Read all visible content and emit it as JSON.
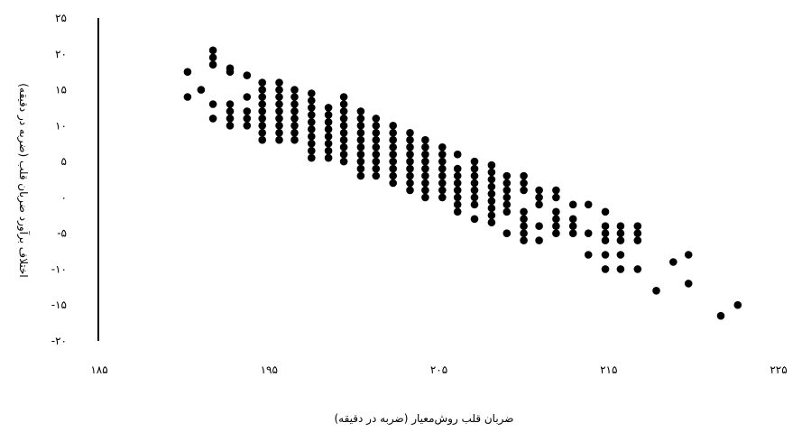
{
  "chart_data": {
    "type": "scatter",
    "xlabel": "ضربان قلب روش‌معیار (ضربه در دقیقه)",
    "ylabel": "اختلاف برآورد ضربان قلب (ضربه در دقیقه)",
    "xlim": [
      185,
      225
    ],
    "ylim": [
      -20,
      25
    ],
    "x_ticks": [
      185,
      195,
      205,
      215,
      225
    ],
    "x_tick_labels": [
      "۱۸۵",
      "۱۹۵",
      "۲۰۵",
      "۲۱۵",
      "۲۲۵"
    ],
    "y_ticks": [
      25,
      20,
      15,
      10,
      5,
      0,
      -5,
      -10,
      -15,
      -20
    ],
    "y_tick_labels": [
      "۲۵",
      "۲۰",
      "۱۵",
      "۱۰",
      "۵",
      "۰",
      "-۵",
      "-۱۰",
      "-۱۵",
      "-۲۰"
    ],
    "grid": false,
    "color": "#000000",
    "points": [
      [
        190.2,
        17.5
      ],
      [
        190.2,
        14.0
      ],
      [
        191.0,
        15.0
      ],
      [
        191.7,
        20.5
      ],
      [
        191.7,
        19.5
      ],
      [
        191.7,
        18.5
      ],
      [
        191.7,
        13.0
      ],
      [
        191.7,
        11.0
      ],
      [
        192.7,
        18.0
      ],
      [
        192.7,
        17.5
      ],
      [
        192.7,
        13.0
      ],
      [
        192.7,
        12.0
      ],
      [
        192.7,
        11.0
      ],
      [
        192.7,
        10.0
      ],
      [
        193.7,
        17.0
      ],
      [
        193.7,
        14.0
      ],
      [
        193.7,
        12.0
      ],
      [
        193.7,
        11.0
      ],
      [
        193.7,
        10.0
      ],
      [
        194.6,
        16.0
      ],
      [
        194.6,
        15.0
      ],
      [
        194.6,
        14.0
      ],
      [
        194.6,
        13.0
      ],
      [
        194.6,
        12.0
      ],
      [
        194.6,
        11.0
      ],
      [
        194.6,
        10.0
      ],
      [
        194.6,
        9.0
      ],
      [
        194.6,
        8.0
      ],
      [
        195.6,
        16.0
      ],
      [
        195.6,
        15.0
      ],
      [
        195.6,
        14.0
      ],
      [
        195.6,
        13.0
      ],
      [
        195.6,
        12.0
      ],
      [
        195.6,
        11.0
      ],
      [
        195.6,
        10.0
      ],
      [
        195.6,
        9.0
      ],
      [
        195.6,
        8.0
      ],
      [
        196.5,
        15.0
      ],
      [
        196.5,
        14.0
      ],
      [
        196.5,
        13.0
      ],
      [
        196.5,
        12.0
      ],
      [
        196.5,
        11.0
      ],
      [
        196.5,
        10.0
      ],
      [
        196.5,
        9.0
      ],
      [
        196.5,
        8.0
      ],
      [
        197.5,
        14.5
      ],
      [
        197.5,
        13.5
      ],
      [
        197.5,
        12.5
      ],
      [
        197.5,
        11.5
      ],
      [
        197.5,
        10.5
      ],
      [
        197.5,
        9.5
      ],
      [
        197.5,
        8.5
      ],
      [
        197.5,
        7.5
      ],
      [
        197.5,
        6.5
      ],
      [
        197.5,
        5.5
      ],
      [
        198.5,
        12.5
      ],
      [
        198.5,
        11.5
      ],
      [
        198.5,
        10.5
      ],
      [
        198.5,
        9.5
      ],
      [
        198.5,
        8.5
      ],
      [
        198.5,
        7.5
      ],
      [
        198.5,
        6.5
      ],
      [
        198.5,
        5.5
      ],
      [
        199.4,
        14.0
      ],
      [
        199.4,
        13.0
      ],
      [
        199.4,
        12.0
      ],
      [
        199.4,
        11.0
      ],
      [
        199.4,
        10.0
      ],
      [
        199.4,
        9.0
      ],
      [
        199.4,
        8.0
      ],
      [
        199.4,
        7.0
      ],
      [
        199.4,
        6.0
      ],
      [
        199.4,
        5.0
      ],
      [
        200.4,
        12.0
      ],
      [
        200.4,
        11.0
      ],
      [
        200.4,
        10.0
      ],
      [
        200.4,
        9.0
      ],
      [
        200.4,
        8.0
      ],
      [
        200.4,
        7.0
      ],
      [
        200.4,
        6.0
      ],
      [
        200.4,
        5.0
      ],
      [
        200.4,
        4.0
      ],
      [
        200.4,
        3.0
      ],
      [
        201.3,
        11.0
      ],
      [
        201.3,
        10.0
      ],
      [
        201.3,
        9.0
      ],
      [
        201.3,
        8.0
      ],
      [
        201.3,
        7.0
      ],
      [
        201.3,
        6.0
      ],
      [
        201.3,
        5.0
      ],
      [
        201.3,
        4.0
      ],
      [
        201.3,
        3.0
      ],
      [
        202.3,
        10.0
      ],
      [
        202.3,
        9.0
      ],
      [
        202.3,
        8.0
      ],
      [
        202.3,
        7.0
      ],
      [
        202.3,
        6.0
      ],
      [
        202.3,
        5.0
      ],
      [
        202.3,
        4.0
      ],
      [
        202.3,
        3.0
      ],
      [
        202.3,
        2.0
      ],
      [
        203.3,
        9.0
      ],
      [
        203.3,
        8.0
      ],
      [
        203.3,
        7.0
      ],
      [
        203.3,
        6.0
      ],
      [
        203.3,
        5.0
      ],
      [
        203.3,
        4.0
      ],
      [
        203.3,
        3.0
      ],
      [
        203.3,
        2.0
      ],
      [
        203.3,
        1.0
      ],
      [
        204.2,
        8.0
      ],
      [
        204.2,
        7.0
      ],
      [
        204.2,
        6.0
      ],
      [
        204.2,
        5.0
      ],
      [
        204.2,
        4.0
      ],
      [
        204.2,
        3.0
      ],
      [
        204.2,
        2.0
      ],
      [
        204.2,
        1.0
      ],
      [
        204.2,
        0.0
      ],
      [
        205.2,
        7.0
      ],
      [
        205.2,
        6.0
      ],
      [
        205.2,
        5.0
      ],
      [
        205.2,
        4.0
      ],
      [
        205.2,
        3.0
      ],
      [
        205.2,
        2.0
      ],
      [
        205.2,
        1.0
      ],
      [
        205.2,
        0.0
      ],
      [
        206.1,
        6.0
      ],
      [
        206.1,
        4.0
      ],
      [
        206.1,
        3.0
      ],
      [
        206.1,
        2.0
      ],
      [
        206.1,
        1.0
      ],
      [
        206.1,
        0.0
      ],
      [
        206.1,
        -1.0
      ],
      [
        206.1,
        -2.0
      ],
      [
        207.1,
        5.0
      ],
      [
        207.1,
        4.0
      ],
      [
        207.1,
        3.0
      ],
      [
        207.1,
        2.0
      ],
      [
        207.1,
        1.0
      ],
      [
        207.1,
        0.0
      ],
      [
        207.1,
        -1.0
      ],
      [
        207.1,
        -3.0
      ],
      [
        208.1,
        4.5
      ],
      [
        208.1,
        3.5
      ],
      [
        208.1,
        2.5
      ],
      [
        208.1,
        1.5
      ],
      [
        208.1,
        0.5
      ],
      [
        208.1,
        -0.5
      ],
      [
        208.1,
        -1.5
      ],
      [
        208.1,
        -2.5
      ],
      [
        208.1,
        -3.5
      ],
      [
        209.0,
        3.0
      ],
      [
        209.0,
        2.0
      ],
      [
        209.0,
        1.0
      ],
      [
        209.0,
        0.0
      ],
      [
        209.0,
        -1.0
      ],
      [
        209.0,
        -2.0
      ],
      [
        209.0,
        -5.0
      ],
      [
        210.0,
        3.0
      ],
      [
        210.0,
        2.0
      ],
      [
        210.0,
        1.0
      ],
      [
        210.0,
        -2.0
      ],
      [
        210.0,
        -3.0
      ],
      [
        210.0,
        -4.0
      ],
      [
        210.0,
        -5.0
      ],
      [
        210.0,
        -6.0
      ],
      [
        210.9,
        1.0
      ],
      [
        210.9,
        0.0
      ],
      [
        210.9,
        -1.0
      ],
      [
        210.9,
        -4.0
      ],
      [
        210.9,
        -6.0
      ],
      [
        211.9,
        1.0
      ],
      [
        211.9,
        0.0
      ],
      [
        211.9,
        -2.0
      ],
      [
        211.9,
        -3.0
      ],
      [
        211.9,
        -4.0
      ],
      [
        211.9,
        -5.0
      ],
      [
        212.9,
        -1.0
      ],
      [
        212.9,
        -3.0
      ],
      [
        212.9,
        -4.0
      ],
      [
        212.9,
        -5.0
      ],
      [
        213.8,
        -1.0
      ],
      [
        213.8,
        -5.0
      ],
      [
        213.8,
        -8.0
      ],
      [
        214.8,
        -2.0
      ],
      [
        214.8,
        -4.0
      ],
      [
        214.8,
        -5.0
      ],
      [
        214.8,
        -6.0
      ],
      [
        214.8,
        -8.0
      ],
      [
        214.8,
        -10.0
      ],
      [
        215.7,
        -4.0
      ],
      [
        215.7,
        -5.0
      ],
      [
        215.7,
        -6.0
      ],
      [
        215.7,
        -8.0
      ],
      [
        215.7,
        -10.0
      ],
      [
        216.7,
        -4.0
      ],
      [
        216.7,
        -5.0
      ],
      [
        216.7,
        -6.0
      ],
      [
        216.7,
        -10.0
      ],
      [
        217.8,
        -13.0
      ],
      [
        218.8,
        -9.0
      ],
      [
        219.7,
        -8.0
      ],
      [
        219.7,
        -12.0
      ],
      [
        221.6,
        -16.5
      ],
      [
        222.6,
        -15.0
      ]
    ]
  }
}
